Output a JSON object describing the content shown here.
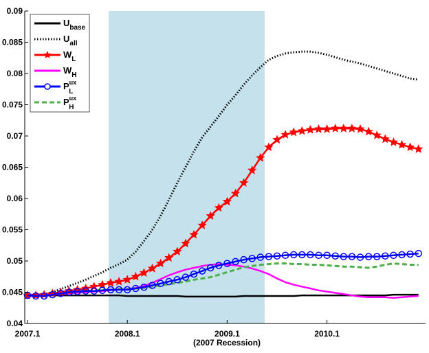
{
  "chart_data": {
    "type": "line",
    "title": "",
    "xlabel": "(2007 Recession)",
    "ylabel": "",
    "ylim": [
      0.04,
      0.09
    ],
    "yticks": [
      "0.04",
      "0.045",
      "0.05",
      "0.055",
      "0.06",
      "0.065",
      "0.07",
      "0.075",
      "0.08",
      "0.085",
      "0.09"
    ],
    "xticks": [
      {
        "x": "2007-01",
        "label": "2007.1"
      },
      {
        "x": "2008-01",
        "label": "2008.1"
      },
      {
        "x": "2009-01",
        "label": "2009.1"
      },
      {
        "x": "2010-01",
        "label": "2010.1"
      }
    ],
    "xlim": [
      "2007-01",
      "2010-12"
    ],
    "shaded_region": {
      "from": "2007-11",
      "to": "2009-06",
      "color": "#c5e2ec"
    },
    "grid": false,
    "legend_position": "top-left",
    "x": [
      "2007-01",
      "2007-02",
      "2007-03",
      "2007-04",
      "2007-05",
      "2007-06",
      "2007-07",
      "2007-08",
      "2007-09",
      "2007-10",
      "2007-11",
      "2007-12",
      "2008-01",
      "2008-02",
      "2008-03",
      "2008-04",
      "2008-05",
      "2008-06",
      "2008-07",
      "2008-08",
      "2008-09",
      "2008-10",
      "2008-11",
      "2008-12",
      "2009-01",
      "2009-02",
      "2009-03",
      "2009-04",
      "2009-05",
      "2009-06",
      "2009-07",
      "2009-08",
      "2009-09",
      "2009-10",
      "2009-11",
      "2009-12",
      "2010-01",
      "2010-02",
      "2010-03",
      "2010-04",
      "2010-05",
      "2010-06",
      "2010-07",
      "2010-08",
      "2010-09",
      "2010-10",
      "2010-11",
      "2010-12"
    ],
    "series": [
      {
        "name": "U",
        "sub": "base",
        "sup": "",
        "color": "#000000",
        "style": "solid",
        "marker": "none",
        "values": [
          0.0445,
          0.0445,
          0.0445,
          0.0445,
          0.0445,
          0.0445,
          0.0445,
          0.0445,
          0.0445,
          0.0445,
          0.0445,
          0.0445,
          0.0444,
          0.0444,
          0.0444,
          0.0444,
          0.0444,
          0.0444,
          0.0444,
          0.0443,
          0.0443,
          0.0443,
          0.0443,
          0.0443,
          0.0443,
          0.0443,
          0.0444,
          0.0444,
          0.0444,
          0.0444,
          0.0444,
          0.0444,
          0.0444,
          0.0445,
          0.0445,
          0.0445,
          0.0445,
          0.0445,
          0.0445,
          0.0445,
          0.0445,
          0.0445,
          0.0445,
          0.0445,
          0.0446,
          0.0446,
          0.0446,
          0.0446
        ]
      },
      {
        "name": "U",
        "sub": "all",
        "sup": "",
        "color": "#000000",
        "style": "dotted",
        "marker": "none",
        "values": [
          0.0445,
          0.0445,
          0.0447,
          0.045,
          0.0455,
          0.046,
          0.0465,
          0.047,
          0.0476,
          0.0482,
          0.0489,
          0.0495,
          0.0502,
          0.0515,
          0.0532,
          0.055,
          0.0572,
          0.0598,
          0.0625,
          0.065,
          0.0675,
          0.0698,
          0.0715,
          0.0732,
          0.075,
          0.0765,
          0.0782,
          0.0797,
          0.081,
          0.0822,
          0.0828,
          0.0832,
          0.0834,
          0.0835,
          0.0835,
          0.0833,
          0.083,
          0.0826,
          0.0822,
          0.0819,
          0.0816,
          0.0812,
          0.0808,
          0.0804,
          0.08,
          0.0796,
          0.0792,
          0.079
        ]
      },
      {
        "name": "W",
        "sub": "L",
        "sup": "",
        "color": "#ff0000",
        "style": "solid",
        "marker": "star",
        "values": [
          0.0445,
          0.0445,
          0.0446,
          0.0448,
          0.045,
          0.0452,
          0.0454,
          0.0456,
          0.0459,
          0.0462,
          0.0465,
          0.0467,
          0.047,
          0.0475,
          0.0481,
          0.0488,
          0.0496,
          0.0505,
          0.0515,
          0.0528,
          0.0542,
          0.0557,
          0.0572,
          0.0585,
          0.0595,
          0.0608,
          0.0625,
          0.0645,
          0.0665,
          0.0682,
          0.0694,
          0.0702,
          0.0706,
          0.0708,
          0.071,
          0.0711,
          0.0711,
          0.0712,
          0.0712,
          0.0712,
          0.0711,
          0.0707,
          0.0701,
          0.0695,
          0.069,
          0.0686,
          0.0682,
          0.0679
        ]
      },
      {
        "name": "W",
        "sub": "H",
        "sup": "",
        "color": "#ff00ff",
        "style": "solid",
        "marker": "none",
        "values": [
          0.0444,
          0.0444,
          0.0445,
          0.0446,
          0.0447,
          0.0448,
          0.0449,
          0.045,
          0.0451,
          0.0452,
          0.0453,
          0.0454,
          0.0455,
          0.0457,
          0.046,
          0.0465,
          0.0471,
          0.0477,
          0.0482,
          0.0486,
          0.0489,
          0.0492,
          0.0494,
          0.0495,
          0.0494,
          0.0493,
          0.0491,
          0.0488,
          0.0484,
          0.0479,
          0.0472,
          0.0466,
          0.0462,
          0.0459,
          0.0456,
          0.0453,
          0.0451,
          0.0449,
          0.0447,
          0.0445,
          0.0443,
          0.0442,
          0.0442,
          0.0442,
          0.0441,
          0.0442,
          0.0443,
          0.0444
        ]
      },
      {
        "name": "P",
        "sub": "L",
        "sup": "ux",
        "color": "#0000ff",
        "style": "solid",
        "marker": "circle",
        "values": [
          0.0445,
          0.0444,
          0.0444,
          0.0446,
          0.0448,
          0.045,
          0.0451,
          0.0452,
          0.0452,
          0.0453,
          0.0454,
          0.0454,
          0.0454,
          0.0456,
          0.0458,
          0.0461,
          0.0464,
          0.0467,
          0.047,
          0.0474,
          0.0479,
          0.0484,
          0.0489,
          0.0493,
          0.0496,
          0.0499,
          0.0502,
          0.0504,
          0.0506,
          0.0507,
          0.0508,
          0.0509,
          0.051,
          0.051,
          0.051,
          0.0509,
          0.0509,
          0.0508,
          0.0507,
          0.0507,
          0.0506,
          0.0507,
          0.0507,
          0.0508,
          0.0509,
          0.051,
          0.0511,
          0.0512
        ]
      },
      {
        "name": "P",
        "sub": "H",
        "sup": "ux",
        "color": "#4daf4a",
        "style": "dashed",
        "marker": "none",
        "values": [
          0.0445,
          0.0446,
          0.0447,
          0.0448,
          0.0449,
          0.045,
          0.0451,
          0.0452,
          0.0453,
          0.0454,
          0.0454,
          0.0455,
          0.0455,
          0.0456,
          0.0457,
          0.0459,
          0.0461,
          0.0463,
          0.0465,
          0.0467,
          0.047,
          0.0472,
          0.0474,
          0.0478,
          0.0482,
          0.0486,
          0.049,
          0.0492,
          0.0494,
          0.0495,
          0.0496,
          0.0496,
          0.0495,
          0.0495,
          0.0494,
          0.0494,
          0.0493,
          0.0492,
          0.0491,
          0.0491,
          0.049,
          0.0489,
          0.0491,
          0.0494,
          0.0496,
          0.0495,
          0.0494,
          0.0494
        ]
      }
    ]
  }
}
